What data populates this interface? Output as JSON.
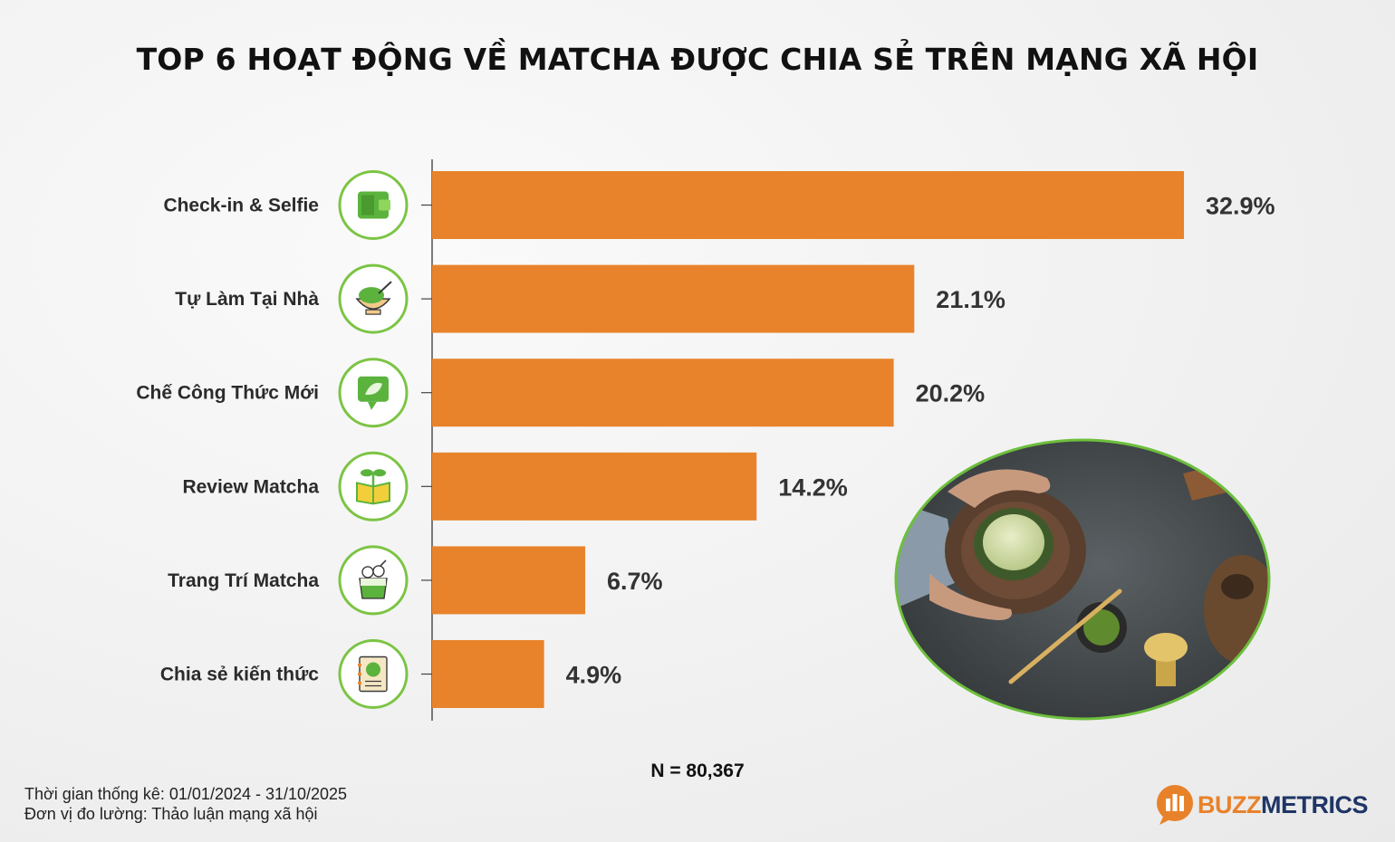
{
  "title": "TOP 6 HOẠT ĐỘNG VỀ MATCHA ĐƯỢC CHIA SẺ TRÊN MẠNG XÃ HỘI",
  "sample_size": "N = 80,367",
  "footnotes": {
    "period": "Thời gian thống kê: 01/01/2024 - 31/10/2025",
    "unit": "Đơn vị đo lường: Thảo luận mạng xã hội"
  },
  "brand": {
    "part1": "BUZZ",
    "part2": "METRICS",
    "color_accent": "#e8822a",
    "color_dark": "#1f3566"
  },
  "colors": {
    "bar": "#e8832b",
    "icon_ring": "#7cc444",
    "icon_green": "#5bb33e"
  },
  "chart_data": {
    "type": "bar",
    "orientation": "horizontal",
    "categories": [
      "Check-in & Selfie",
      "Tự Làm Tại Nhà",
      "Chế Công Thức Mới",
      "Review Matcha",
      "Trang Trí Matcha",
      "Chia sẻ kiến thức"
    ],
    "values": [
      32.9,
      21.1,
      20.2,
      14.2,
      6.7,
      4.9
    ],
    "value_labels": [
      "32.9%",
      "21.1%",
      "20.2%",
      "14.2%",
      "6.7%",
      "4.9%"
    ],
    "icons": [
      "wallet-icon",
      "bowl-whisk-icon",
      "recipe-chat-icon",
      "book-sprout-icon",
      "cup-dessert-icon",
      "notebook-leaf-icon"
    ],
    "xlim": [
      0,
      32.9
    ],
    "grid": false,
    "legend": "none"
  }
}
